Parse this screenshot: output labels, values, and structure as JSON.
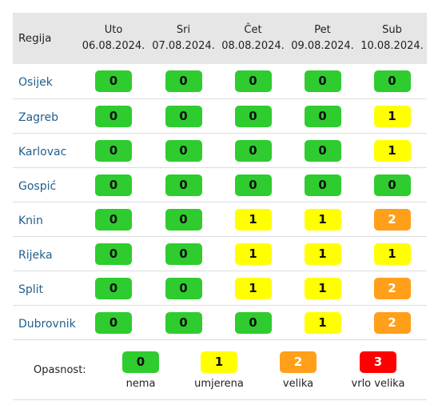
{
  "header": {
    "region_label": "Regija",
    "days": [
      {
        "name": "Uto",
        "date": "06.08.2024."
      },
      {
        "name": "Sri",
        "date": "07.08.2024."
      },
      {
        "name": "Čet",
        "date": "08.08.2024."
      },
      {
        "name": "Pet",
        "date": "09.08.2024."
      },
      {
        "name": "Sub",
        "date": "10.08.2024."
      }
    ]
  },
  "rows": [
    {
      "region": "Osijek",
      "levels": [
        0,
        0,
        0,
        0,
        0
      ]
    },
    {
      "region": "Zagreb",
      "levels": [
        0,
        0,
        0,
        0,
        1
      ]
    },
    {
      "region": "Karlovac",
      "levels": [
        0,
        0,
        0,
        0,
        1
      ]
    },
    {
      "region": "Gospić",
      "levels": [
        0,
        0,
        0,
        0,
        0
      ]
    },
    {
      "region": "Knin",
      "levels": [
        0,
        0,
        1,
        1,
        2
      ]
    },
    {
      "region": "Rijeka",
      "levels": [
        0,
        0,
        1,
        1,
        1
      ]
    },
    {
      "region": "Split",
      "levels": [
        0,
        0,
        1,
        1,
        2
      ]
    },
    {
      "region": "Dubrovnik",
      "levels": [
        0,
        0,
        0,
        1,
        2
      ]
    }
  ],
  "legend": {
    "title": "Opasnost:",
    "items": [
      {
        "value": "0",
        "label": "nema"
      },
      {
        "value": "1",
        "label": "umjerena"
      },
      {
        "value": "2",
        "label": "velika"
      },
      {
        "value": "3",
        "label": "vrlo velika"
      }
    ]
  },
  "colors": {
    "level_0": "#2fcc2f",
    "level_1": "#ffff00",
    "level_2": "#ff9f1a",
    "level_3": "#ff0000",
    "link": "#1f5f8b",
    "header_bg": "#e6e6e6"
  }
}
